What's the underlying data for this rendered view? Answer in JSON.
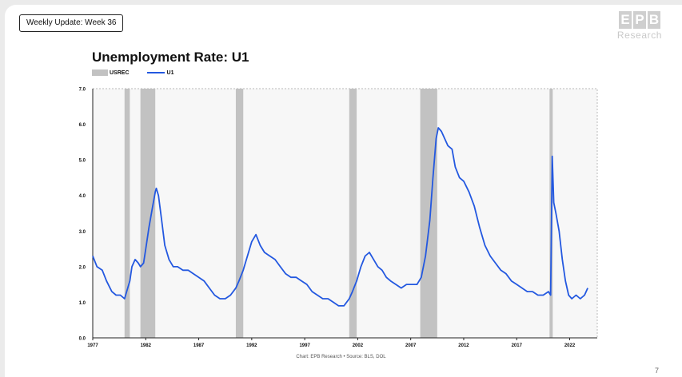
{
  "header": {
    "tag_label": "Weekly Update: Week 36"
  },
  "logo": {
    "mark": [
      "E",
      "P",
      "B"
    ],
    "text": "Research"
  },
  "footer": {
    "source": "Chart: EPB Research • Source: BLS, DOL",
    "page_number": "7"
  },
  "colors": {
    "line": "#2358e0",
    "recession": "#c2c2c2",
    "plot_bg": "#f7f7f7"
  },
  "chart_data": {
    "type": "line",
    "title": "Unemployment Rate: U1",
    "xlabel": "",
    "ylabel": "",
    "xlim": [
      1977,
      2024.6
    ],
    "ylim": [
      0,
      7
    ],
    "y_ticks": [
      0,
      1,
      2,
      3,
      4,
      5,
      6,
      7
    ],
    "y_tick_labels": [
      "0.0",
      "1.0",
      "2.0",
      "3.0",
      "4.0",
      "5.0",
      "6.0",
      "7.0"
    ],
    "x_ticks": [
      1977,
      1982,
      1987,
      1992,
      1997,
      2002,
      2007,
      2012,
      2017,
      2022
    ],
    "x_tick_labels": [
      "1977",
      "1982",
      "1987",
      "1992",
      "1997",
      "2002",
      "2007",
      "2012",
      "2017",
      "2022"
    ],
    "legend": [
      "USREC",
      "U1"
    ],
    "legend_position": "top-left",
    "grid": false,
    "recessions": {
      "name": "USREC",
      "periods": [
        [
          1980.0,
          1980.5
        ],
        [
          1981.5,
          1982.9
        ],
        [
          1990.5,
          1991.2
        ],
        [
          2001.2,
          2001.9
        ],
        [
          2007.9,
          2009.5
        ],
        [
          2020.1,
          2020.4
        ]
      ]
    },
    "series": [
      {
        "name": "U1",
        "x": [
          1977.0,
          1977.4,
          1977.9,
          1978.3,
          1978.8,
          1979.2,
          1979.6,
          1980.0,
          1980.2,
          1980.5,
          1980.7,
          1981.0,
          1981.3,
          1981.5,
          1981.8,
          1982.0,
          1982.3,
          1982.6,
          1982.9,
          1983.0,
          1983.2,
          1983.5,
          1983.8,
          1984.2,
          1984.6,
          1985.0,
          1985.5,
          1986.0,
          1986.5,
          1987.0,
          1987.5,
          1988.0,
          1988.5,
          1989.0,
          1989.5,
          1990.0,
          1990.5,
          1990.8,
          1991.2,
          1991.6,
          1992.0,
          1992.4,
          1992.8,
          1993.2,
          1993.7,
          1994.2,
          1994.7,
          1995.2,
          1995.7,
          1996.2,
          1996.7,
          1997.2,
          1997.7,
          1998.2,
          1998.7,
          1999.2,
          1999.7,
          2000.2,
          2000.7,
          2001.2,
          2001.5,
          2001.9,
          2002.3,
          2002.7,
          2003.1,
          2003.5,
          2003.9,
          2004.3,
          2004.7,
          2005.1,
          2005.6,
          2006.1,
          2006.6,
          2007.1,
          2007.6,
          2008.0,
          2008.4,
          2008.8,
          2009.1,
          2009.4,
          2009.6,
          2009.9,
          2010.2,
          2010.5,
          2010.9,
          2011.2,
          2011.6,
          2012.0,
          2012.5,
          2013.0,
          2013.5,
          2014.0,
          2014.5,
          2015.0,
          2015.5,
          2016.0,
          2016.5,
          2017.0,
          2017.5,
          2018.0,
          2018.5,
          2019.0,
          2019.5,
          2020.0,
          2020.2,
          2020.35,
          2020.5,
          2020.7,
          2021.0,
          2021.3,
          2021.6,
          2021.9,
          2022.2,
          2022.6,
          2023.0,
          2023.4,
          2023.7
        ],
        "values": [
          2.3,
          2.0,
          1.9,
          1.6,
          1.3,
          1.2,
          1.2,
          1.1,
          1.3,
          1.6,
          2.0,
          2.2,
          2.1,
          2.0,
          2.1,
          2.5,
          3.1,
          3.6,
          4.1,
          4.2,
          4.0,
          3.3,
          2.6,
          2.2,
          2.0,
          2.0,
          1.9,
          1.9,
          1.8,
          1.7,
          1.6,
          1.4,
          1.2,
          1.1,
          1.1,
          1.2,
          1.4,
          1.6,
          1.9,
          2.3,
          2.7,
          2.9,
          2.6,
          2.4,
          2.3,
          2.2,
          2.0,
          1.8,
          1.7,
          1.7,
          1.6,
          1.5,
          1.3,
          1.2,
          1.1,
          1.1,
          1.0,
          0.9,
          0.9,
          1.1,
          1.3,
          1.6,
          2.0,
          2.3,
          2.4,
          2.2,
          2.0,
          1.9,
          1.7,
          1.6,
          1.5,
          1.4,
          1.5,
          1.5,
          1.5,
          1.7,
          2.3,
          3.3,
          4.5,
          5.6,
          5.9,
          5.8,
          5.6,
          5.4,
          5.3,
          4.8,
          4.5,
          4.4,
          4.1,
          3.7,
          3.1,
          2.6,
          2.3,
          2.1,
          1.9,
          1.8,
          1.6,
          1.5,
          1.4,
          1.3,
          1.3,
          1.2,
          1.2,
          1.3,
          1.2,
          5.1,
          3.8,
          3.5,
          3.0,
          2.2,
          1.6,
          1.2,
          1.1,
          1.2,
          1.1,
          1.2,
          1.4
        ]
      }
    ]
  }
}
